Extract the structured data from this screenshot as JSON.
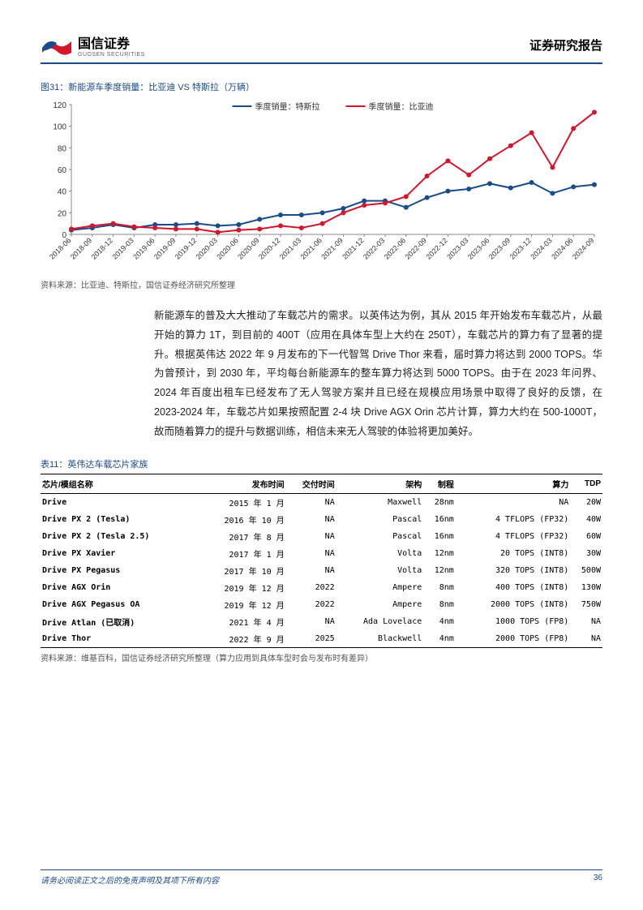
{
  "header": {
    "logo_cn": "国信证券",
    "logo_en": "GUOSEN SECURITIES",
    "report_type": "证券研究报告"
  },
  "figure31": {
    "title": "图31：新能源车季度销量：比亚迪 VS 特斯拉（万辆）",
    "type": "line",
    "legend": [
      "季度销量：特斯拉",
      "季度销量：比亚迪"
    ],
    "colors": {
      "tesla": "#1a4b8c",
      "byd": "#d4152a",
      "axis": "#888",
      "grid": "#ddd"
    },
    "categories": [
      "2018-06",
      "2018-09",
      "2018-12",
      "2019-03",
      "2019-06",
      "2019-09",
      "2019-12",
      "2020-03",
      "2020-06",
      "2020-09",
      "2020-12",
      "2021-03",
      "2021-06",
      "2021-09",
      "2021-12",
      "2022-03",
      "2022-06",
      "2022-09",
      "2022-12",
      "2023-03",
      "2023-06",
      "2023-09",
      "2023-12",
      "2024-03",
      "2024-06",
      "2024-09"
    ],
    "tesla": [
      4,
      6,
      9,
      6,
      9,
      9,
      10,
      8,
      9,
      14,
      18,
      18,
      20,
      24,
      31,
      31,
      25,
      34,
      40,
      42,
      47,
      43,
      48,
      38,
      44,
      46
    ],
    "byd": [
      5,
      8,
      10,
      7,
      6,
      5,
      5,
      2,
      4,
      5,
      8,
      6,
      10,
      20,
      27,
      29,
      35,
      54,
      68,
      55,
      70,
      82,
      94,
      62,
      98,
      113
    ],
    "ylim": [
      0,
      120
    ],
    "ytick_step": 20,
    "label_fontsize": 10,
    "line_width": 2,
    "marker_size": 3,
    "source": "资料来源：比亚迪、特斯拉，国信证券经济研究所整理"
  },
  "body_paragraph": "新能源车的普及大大推动了车载芯片的需求。以英伟达为例，其从 2015 年开始发布车载芯片，从最开始的算力 1T，到目前的 400T（应用在具体车型上大约在 250T），车载芯片的算力有了显著的提升。根据英伟达 2022 年 9 月发布的下一代智驾 Drive Thor 来看，届时算力将达到 2000 TOPS。华为曾预计，到 2030 年，平均每台新能源车的整车算力将达到 5000 TOPS。由于在 2023 年问界、2024 年百度出租车已经发布了无人驾驶方案并且已经在规模应用场景中取得了良好的反馈，在 2023-2024 年，车载芯片如果按照配置 2-4 块 Drive AGX Orin 芯片计算，算力大约在 500-1000T，故而随着算力的提升与数据训练，相信未来无人驾驶的体验将更加美好。",
  "table11": {
    "title": "表11：英伟达车载芯片家族",
    "columns": [
      "芯片/模组名称",
      "发布时间",
      "交付时间",
      "架构",
      "制程",
      "算力",
      "TDP"
    ],
    "col_align": [
      "left",
      "right",
      "right",
      "right",
      "right",
      "right",
      "right"
    ],
    "rows": [
      [
        "Drive",
        "2015 年 1 月",
        "NA",
        "Maxwell",
        "28nm",
        "NA",
        "20W"
      ],
      [
        "Drive PX 2 (Tesla)",
        "2016 年 10 月",
        "NA",
        "Pascal",
        "16nm",
        "4 TFLOPS (FP32)",
        "40W"
      ],
      [
        "Drive PX 2 (Tesla 2.5)",
        "2017 年 8 月",
        "NA",
        "Pascal",
        "16nm",
        "4 TFLOPS (FP32)",
        "60W"
      ],
      [
        "Drive PX Xavier",
        "2017 年 1 月",
        "NA",
        "Volta",
        "12nm",
        "20 TOPS (INT8)",
        "30W"
      ],
      [
        "Drive PX Pegasus",
        "2017 年 10 月",
        "NA",
        "Volta",
        "12nm",
        "320 TOPS (INT8)",
        "500W"
      ],
      [
        "Drive AGX Orin",
        "2019 年 12 月",
        "2022",
        "Ampere",
        "8nm",
        "400 TOPS (INT8)",
        "130W"
      ],
      [
        "Drive AGX Pegasus OA",
        "2019 年 12 月",
        "2022",
        "Ampere",
        "8nm",
        "2000 TOPS (INT8)",
        "750W"
      ],
      [
        "Drive Atlan (已取消)",
        "2021 年 4 月",
        "NA",
        "Ada Lovelace",
        "4nm",
        "1000 TOPS (FP8)",
        "NA"
      ],
      [
        "Drive Thor",
        "2022 年 9 月",
        "2025",
        "Blackwell",
        "4nm",
        "2000 TOPS (FP8)",
        "NA"
      ]
    ],
    "source": "资料来源：维基百科，国信证券经济研究所整理（算力应用到具体车型时会与发布时有差异）"
  },
  "footer": {
    "disclaimer": "请务必阅读正文之后的免责声明及其项下所有内容",
    "page": "36"
  }
}
